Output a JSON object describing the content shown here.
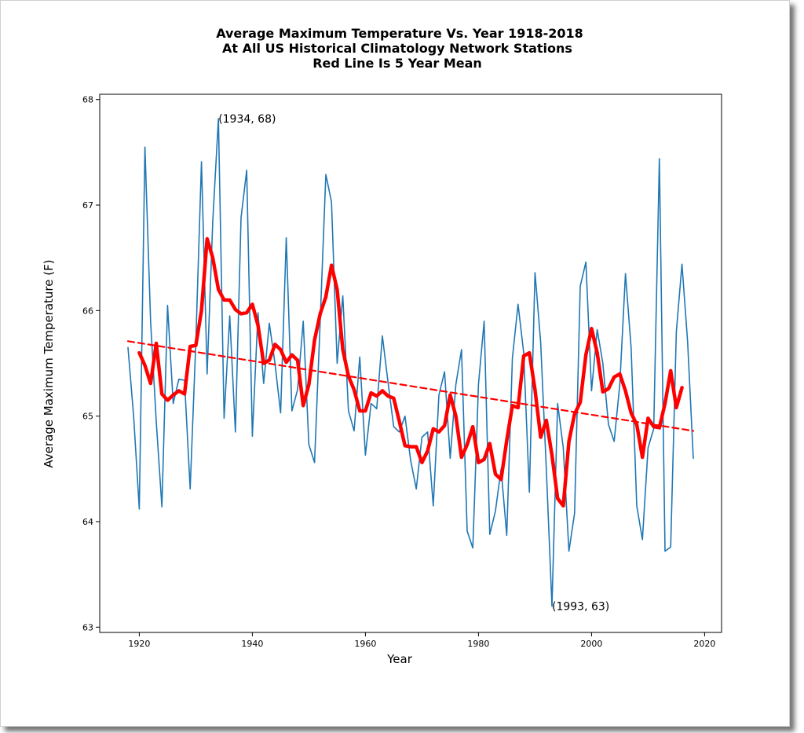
{
  "chart_data": {
    "type": "line",
    "title": [
      "Average Maximum Temperature Vs. Year 1918-2018",
      "At All US Historical Climatology Network Stations",
      "Red Line Is 5 Year Mean"
    ],
    "xlabel": "Year",
    "ylabel": "Average Maximum Temperature (F)",
    "xlim": [
      1913,
      2023
    ],
    "ylim": [
      62.95,
      68.05
    ],
    "xticks": [
      1920,
      1940,
      1960,
      1980,
      2000,
      2020
    ],
    "yticks": [
      63,
      64,
      65,
      66,
      67,
      68
    ],
    "grid": false,
    "series": [
      {
        "style": "thin",
        "color": "#1f77b4",
        "x": [
          1918,
          1919,
          1920,
          1921,
          1922,
          1923,
          1924,
          1925,
          1926,
          1927,
          1928,
          1929,
          1930,
          1931,
          1932,
          1933,
          1934,
          1935,
          1936,
          1937,
          1938,
          1939,
          1940,
          1941,
          1942,
          1943,
          1944,
          1945,
          1946,
          1947,
          1948,
          1949,
          1950,
          1951,
          1952,
          1953,
          1954,
          1955,
          1956,
          1957,
          1958,
          1959,
          1960,
          1961,
          1962,
          1963,
          1964,
          1965,
          1966,
          1967,
          1968,
          1969,
          1970,
          1971,
          1972,
          1973,
          1974,
          1975,
          1976,
          1977,
          1978,
          1979,
          1980,
          1981,
          1982,
          1983,
          1984,
          1985,
          1986,
          1987,
          1988,
          1989,
          1990,
          1991,
          1992,
          1993,
          1994,
          1995,
          1996,
          1997,
          1998,
          1999,
          2000,
          2001,
          2002,
          2003,
          2004,
          2005,
          2006,
          2007,
          2008,
          2009,
          2010,
          2011,
          2012,
          2013,
          2014,
          2015,
          2016,
          2017,
          2018
        ],
        "y": [
          65.65,
          65.0,
          64.12,
          67.55,
          65.9,
          64.95,
          64.14,
          66.05,
          65.12,
          65.35,
          65.34,
          64.31,
          65.7,
          67.41,
          65.4,
          66.85,
          67.82,
          64.98,
          65.95,
          64.85,
          66.88,
          67.33,
          64.81,
          65.98,
          65.31,
          65.88,
          65.5,
          65.03,
          66.69,
          65.05,
          65.25,
          65.9,
          64.73,
          64.56,
          65.9,
          67.29,
          67.03,
          65.5,
          66.14,
          65.05,
          64.86,
          65.56,
          64.63,
          65.12,
          65.07,
          65.76,
          65.32,
          64.9,
          64.85,
          65.0,
          64.58,
          64.31,
          64.8,
          64.85,
          64.15,
          65.2,
          65.42,
          64.6,
          65.3,
          65.63,
          63.91,
          63.75,
          65.3,
          65.9,
          63.88,
          64.1,
          64.5,
          63.87,
          65.55,
          66.06,
          65.6,
          64.28,
          66.36,
          65.7,
          64.5,
          63.2,
          65.12,
          64.7,
          63.72,
          64.08,
          66.23,
          66.46,
          65.24,
          65.82,
          65.5,
          64.92,
          64.76,
          65.3,
          66.35,
          65.65,
          64.15,
          63.83,
          64.7,
          64.88,
          67.44,
          63.72,
          63.76,
          65.8,
          66.44,
          65.7,
          64.6
        ]
      },
      {
        "style": "thick",
        "color": "#ff0000",
        "x": [
          1920,
          1921,
          1922,
          1923,
          1924,
          1925,
          1926,
          1927,
          1928,
          1929,
          1930,
          1931,
          1932,
          1933,
          1934,
          1935,
          1936,
          1937,
          1938,
          1939,
          1940,
          1941,
          1942,
          1943,
          1944,
          1945,
          1946,
          1947,
          1948,
          1949,
          1950,
          1951,
          1952,
          1953,
          1954,
          1955,
          1956,
          1957,
          1958,
          1959,
          1960,
          1961,
          1962,
          1963,
          1964,
          1965,
          1966,
          1967,
          1968,
          1969,
          1970,
          1971,
          1972,
          1973,
          1974,
          1975,
          1976,
          1977,
          1978,
          1979,
          1980,
          1981,
          1982,
          1983,
          1984,
          1985,
          1986,
          1987,
          1988,
          1989,
          1990,
          1991,
          1992,
          1993,
          1994,
          1995,
          1996,
          1997,
          1998,
          1999,
          2000,
          2001,
          2002,
          2003,
          2004,
          2005,
          2006,
          2007,
          2008,
          2009,
          2010,
          2011,
          2012,
          2013,
          2014,
          2015,
          2016
        ],
        "y": [
          65.6,
          65.48,
          65.31,
          65.69,
          65.21,
          65.15,
          65.2,
          65.24,
          65.21,
          65.66,
          65.67,
          66.0,
          66.68,
          66.5,
          66.2,
          66.1,
          66.1,
          66.01,
          65.97,
          65.98,
          66.06,
          65.86,
          65.5,
          65.53,
          65.68,
          65.63,
          65.51,
          65.58,
          65.53,
          65.1,
          65.3,
          65.72,
          65.97,
          66.13,
          66.43,
          66.2,
          65.63,
          65.38,
          65.25,
          65.05,
          65.05,
          65.22,
          65.19,
          65.24,
          65.19,
          65.17,
          64.95,
          64.72,
          64.71,
          64.71,
          64.56,
          64.67,
          64.88,
          64.85,
          64.91,
          65.2,
          65.0,
          64.61,
          64.73,
          64.9,
          64.56,
          64.59,
          64.74,
          64.45,
          64.4,
          64.77,
          65.1,
          65.08,
          65.57,
          65.6,
          65.25,
          64.8,
          64.96,
          64.63,
          64.22,
          64.15,
          64.76,
          65.02,
          65.13,
          65.58,
          65.83,
          65.6,
          65.23,
          65.26,
          65.37,
          65.4,
          65.24,
          65.03,
          64.92,
          64.61,
          64.98,
          64.9,
          64.89,
          65.12,
          65.43,
          65.08,
          65.27
        ]
      },
      {
        "style": "dashed",
        "color": "#ff0000",
        "x": [
          1918,
          2018
        ],
        "y": [
          65.71,
          64.86
        ]
      }
    ],
    "annotations": [
      {
        "text": "(1934, 68)",
        "x": 1934,
        "y": 67.82
      },
      {
        "text": "(1993, 63)",
        "x": 1993,
        "y": 63.2
      }
    ]
  }
}
